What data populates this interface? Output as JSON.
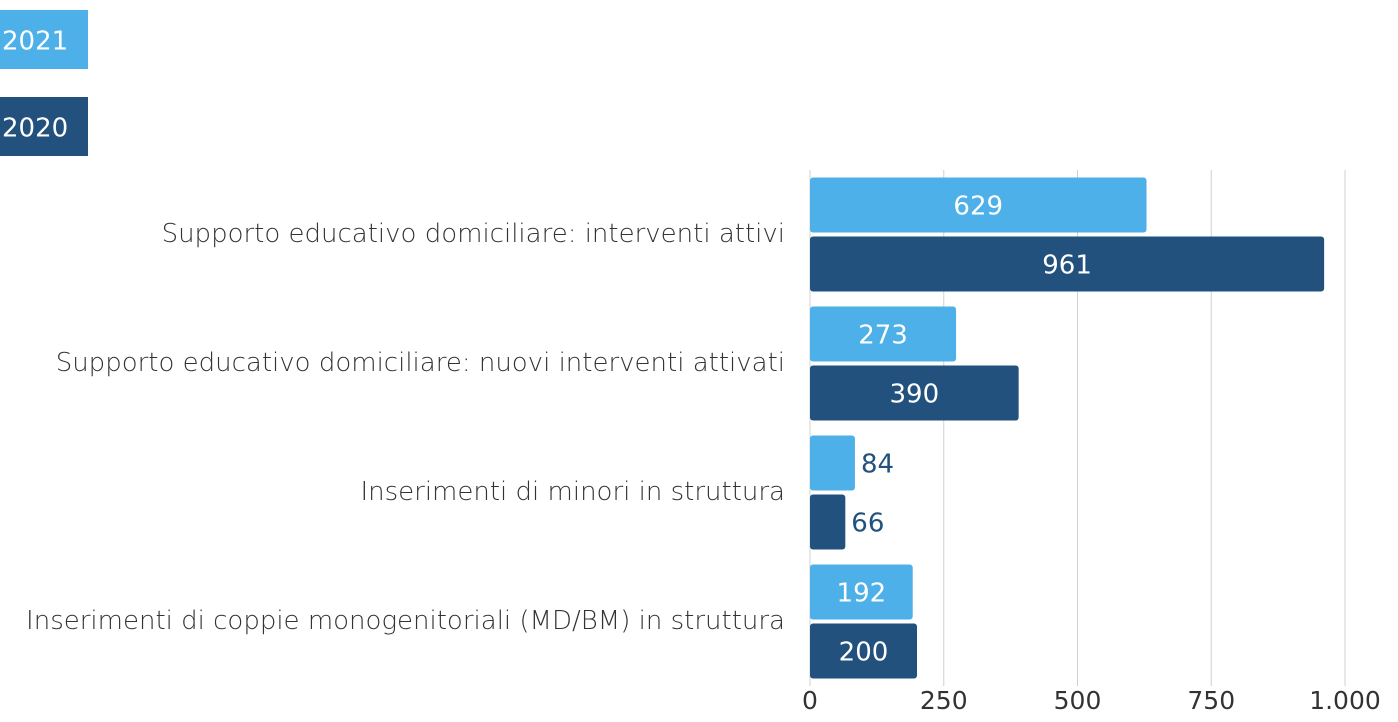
{
  "chart_data": {
    "type": "hbar",
    "categories": [
      "Supporto educativo domiciliare: interventi attivi",
      "Supporto educativo domiciliare: nuovi interventi attivati",
      "Inserimenti di minori in struttura",
      "Inserimenti di coppie monogenitoriali (MD/BM) in struttura"
    ],
    "series": [
      {
        "name": "2021",
        "color": "#4db0e8",
        "values": [
          629,
          273,
          84,
          192
        ]
      },
      {
        "name": "2020",
        "color": "#22517d",
        "values": [
          961,
          390,
          66,
          200
        ]
      }
    ],
    "xlim": [
      0,
      1000
    ],
    "xticks": [
      0,
      250,
      500,
      750,
      {
        "value": 1000,
        "label": "1.000"
      }
    ],
    "grid": true,
    "legend": "top-left"
  }
}
